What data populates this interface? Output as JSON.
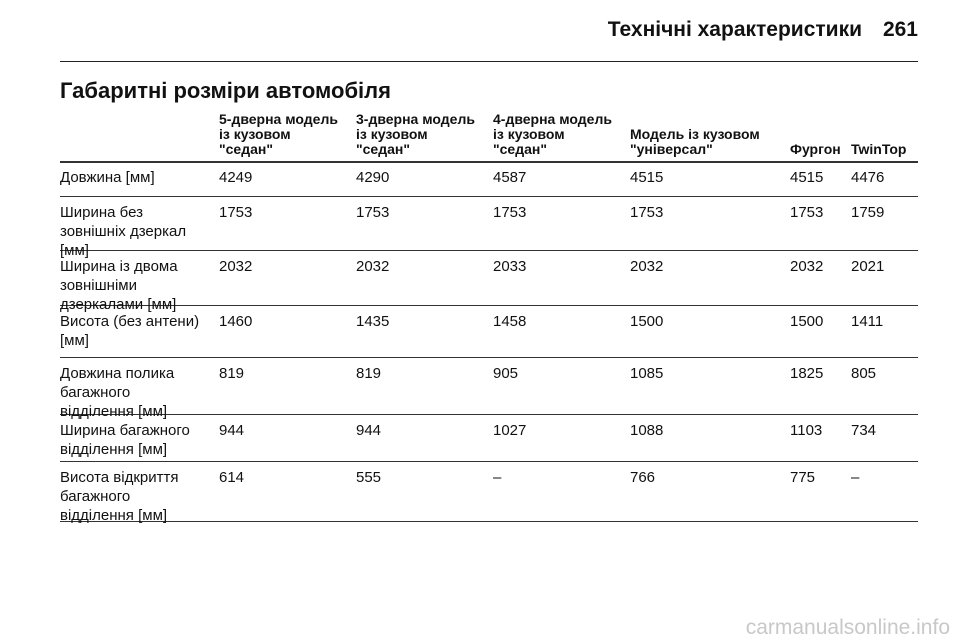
{
  "header": {
    "section": "Технічні характеристики",
    "page_number": "261"
  },
  "title": "Габаритні розміри автомобіля",
  "table": {
    "columns": [
      [
        "5-дверна модель",
        "із кузовом",
        "\"седан\""
      ],
      [
        "3-дверна модель",
        "із кузовом",
        "\"седан\""
      ],
      [
        "4-дверна модель",
        "із кузовом",
        "\"седан\""
      ],
      [
        "Модель із кузовом",
        "\"універсал\""
      ],
      [
        "Фургон"
      ],
      [
        "TwinTop"
      ]
    ],
    "rows": [
      {
        "label": [
          "Довжина [мм]"
        ],
        "values": [
          4249,
          4290,
          4587,
          4515,
          4515,
          4476
        ]
      },
      {
        "label": [
          "Ширина без",
          "зовнішніх дзеркал",
          "[мм]"
        ],
        "values": [
          1753,
          1753,
          1753,
          1753,
          1753,
          1759
        ]
      },
      {
        "label": [
          "Ширина із двома",
          "зовнішніми",
          "дзеркалами [мм]"
        ],
        "values": [
          2032,
          2032,
          2033,
          2032,
          2032,
          2021
        ]
      },
      {
        "label": [
          "Висота (без антени)",
          "[мм]"
        ],
        "values": [
          1460,
          1435,
          1458,
          1500,
          1500,
          1411
        ]
      },
      {
        "label": [
          "Довжина полика",
          "багажного",
          "відділення [мм]"
        ],
        "values": [
          819,
          819,
          905,
          1085,
          1825,
          805
        ]
      },
      {
        "label": [
          "Ширина багажного",
          "відділення [мм]"
        ],
        "values": [
          944,
          944,
          1027,
          1088,
          1103,
          734
        ]
      },
      {
        "label": [
          "Висота відкриття",
          "багажного",
          "відділення [мм]"
        ],
        "values": [
          614,
          555,
          "–",
          766,
          775,
          "–"
        ]
      }
    ]
  },
  "watermark": "carmanualsonline.info"
}
